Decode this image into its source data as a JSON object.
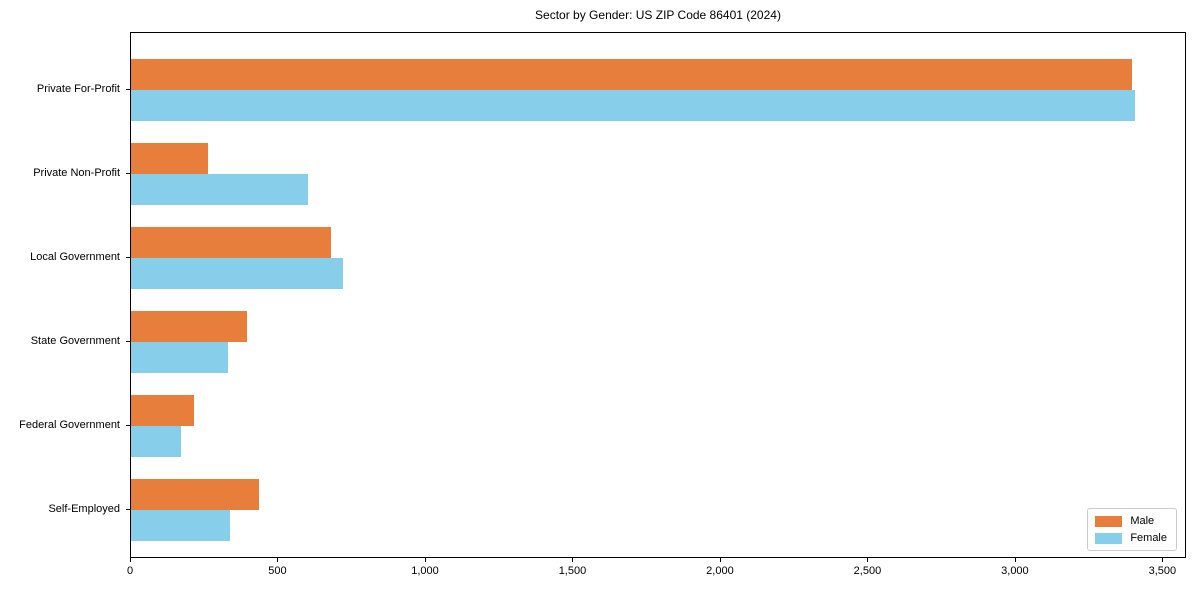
{
  "chart_data": {
    "type": "bar",
    "orientation": "horizontal",
    "title": "Sector by Gender: US ZIP Code 86401 (2024)",
    "categories": [
      "Private For-Profit",
      "Private Non-Profit",
      "Local Government",
      "State Government",
      "Federal Government",
      "Self-Employed"
    ],
    "series": [
      {
        "name": "Male",
        "color": "#e87e3c",
        "values": [
          3400,
          260,
          680,
          395,
          215,
          435
        ]
      },
      {
        "name": "Female",
        "color": "#87ceeb",
        "values": [
          3410,
          600,
          720,
          330,
          170,
          335
        ]
      }
    ],
    "xlabel": "",
    "ylabel": "",
    "xlim": [
      0,
      3580
    ],
    "xticks": [
      0,
      500,
      1000,
      1500,
      2000,
      2500,
      3000,
      3500
    ],
    "xtick_labels": [
      "0",
      "500",
      "1,000",
      "1,500",
      "2,000",
      "2,500",
      "3,000",
      "3,500"
    ],
    "grid": false,
    "background_color": "#ffffff",
    "axis_color": "#000000",
    "legend": {
      "position": "lower right",
      "entries": [
        "Male",
        "Female"
      ]
    }
  }
}
